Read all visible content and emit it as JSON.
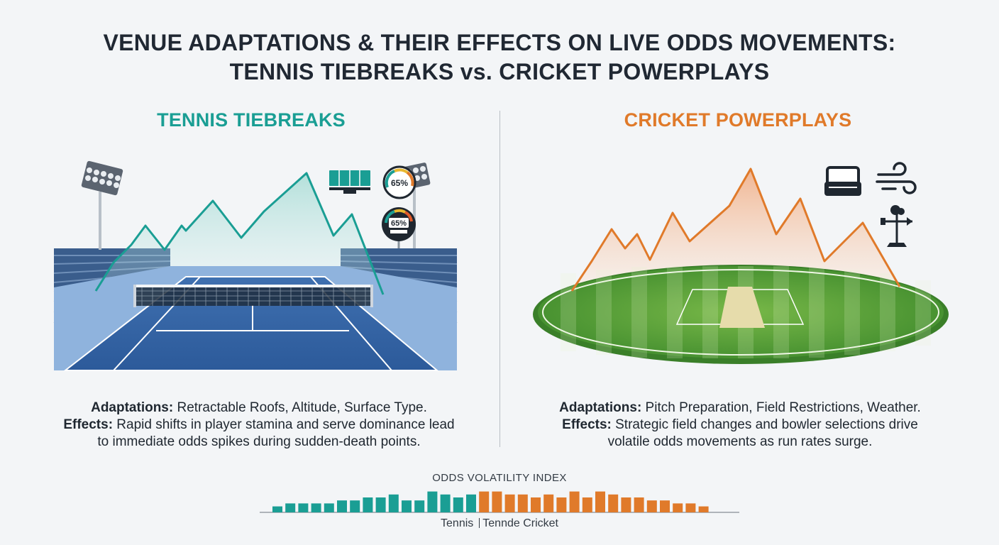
{
  "title": {
    "line1": "VENUE ADAPTATIONS & THEIR EFFECTS ON LIVE ODDS MOVEMENTS:",
    "line2": "TENNIS TIEBREAKS vs. CRICKET POWERPLAYS"
  },
  "tennis": {
    "heading": "TENNIS TIEBREAKS",
    "gauge_top": "65%",
    "gauge_bottom": "65%",
    "adaptations_label": "Adaptations:",
    "adaptations_text": " Retractable Roofs, Altitude, Surface Type.",
    "effects_label": "Effects:",
    "effects_text": " Rapid shifts in player stamina and serve dominance lead",
    "effects_text2": "to immediate odds spikes during sudden-death points.",
    "icons": [
      "floodlight-icon",
      "retractable-roof-icon",
      "altitude-gauge-icon"
    ]
  },
  "cricket": {
    "heading": "CRICKET POWERPLAYS",
    "adaptations_label": "Adaptations:",
    "adaptations_text": " Pitch Preparation, Field Restrictions, Weather.",
    "effects_label": "Effects:",
    "effects_text": " Strategic field changes and bowler selections drive",
    "effects_text2": "volatile odds movements as run rates surge.",
    "icons": [
      "pitch-roller-icon",
      "wind-icon",
      "weather-vane-icon"
    ]
  },
  "colors": {
    "tennis": "#1a9e94",
    "cricket": "#e07a2a",
    "court": "#2f5f9e",
    "grass": "#4f9a33"
  },
  "chart_data": {
    "type": "bar",
    "title": "ODDS VOLATILITY INDEX",
    "legend": {
      "tennis": "Tennis",
      "cricket": "Tennde Cricket"
    },
    "tennis_values": [
      2,
      3,
      3,
      3,
      3,
      4,
      4,
      5,
      5,
      6,
      4,
      4,
      7,
      6,
      5,
      6
    ],
    "cricket_values": [
      7,
      7,
      6,
      6,
      5,
      6,
      5,
      7,
      5,
      7,
      6,
      5,
      5,
      4,
      4,
      3,
      3,
      2
    ]
  }
}
